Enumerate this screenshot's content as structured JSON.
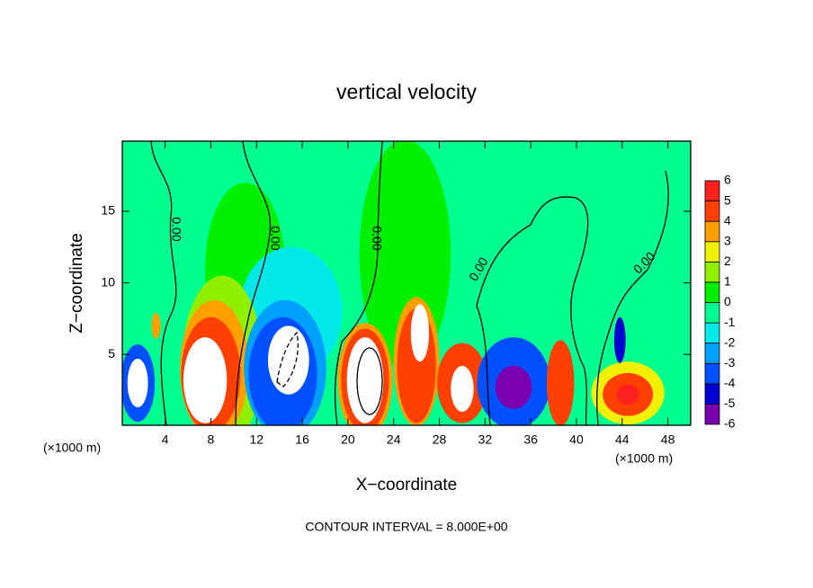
{
  "chart_data": {
    "type": "contour",
    "title": "vertical velocity",
    "x_label": "X−coordinate",
    "y_label": "Z−coordinate",
    "x_unit": "(×1000 m)",
    "x_unit_right": "(×1000 m)",
    "footer": "CONTOUR INTERVAL = 8.000E+00",
    "xlim": [
      0.25,
      50
    ],
    "ylim": [
      0.05,
      19.9
    ],
    "xticks": [
      4,
      8,
      12,
      16,
      20,
      24,
      28,
      32,
      36,
      40,
      44,
      48
    ],
    "yticks": [
      5,
      10,
      15
    ],
    "contour_labels": [
      "0.00",
      "0.00",
      "0.00",
      "0.00",
      "0.00"
    ],
    "colorbar": {
      "levels": [
        -6,
        -5,
        -4,
        -3,
        -2,
        -1,
        0,
        1,
        2,
        3,
        4,
        5,
        6
      ],
      "colors": [
        "#7a00b0",
        "#0000d0",
        "#0050ff",
        "#00a0ff",
        "#00e8e8",
        "#00ff90",
        "#00f000",
        "#90f000",
        "#f0f000",
        "#ffa000",
        "#ff4000",
        "#ff2020",
        "#ff9090"
      ]
    },
    "background_value": -0.5,
    "features": [
      {
        "x": 11,
        "z": 11,
        "rx": 3.5,
        "rz": 6,
        "value": 0.5
      },
      {
        "x": 25,
        "z": 12,
        "rx": 4,
        "rz": 8,
        "value": 0.5
      },
      {
        "x": 15,
        "z": 8,
        "rx": 4.5,
        "rz": 4.5,
        "value": -1.5
      },
      {
        "x": 9,
        "z": 4.5,
        "rx": 3.5,
        "rz": 6,
        "value": 1.5
      },
      {
        "x": 8.3,
        "z": 4,
        "rx": 3,
        "rz": 4.8,
        "value": 3
      },
      {
        "x": 8,
        "z": 3.6,
        "rx": 2.6,
        "rz": 4,
        "value": 4.5
      },
      {
        "x": 7.5,
        "z": 3.2,
        "rx": 1.9,
        "rz": 3,
        "value": 7
      },
      {
        "x": 14.5,
        "z": 4,
        "rx": 3.6,
        "rz": 4.8,
        "value": -2.5
      },
      {
        "x": 14.3,
        "z": 3.6,
        "rx": 3,
        "rz": 4,
        "value": -4
      },
      {
        "x": 14.8,
        "z": 4.6,
        "rx": 1.8,
        "rz": 2.4,
        "value": -7
      },
      {
        "x": 21.5,
        "z": 3.2,
        "rx": 2.4,
        "rz": 4,
        "value": 3
      },
      {
        "x": 21.5,
        "z": 3.2,
        "rx": 2.1,
        "rz": 3.6,
        "value": 4.5
      },
      {
        "x": 21.5,
        "z": 3.2,
        "rx": 1.6,
        "rz": 3,
        "value": 7
      },
      {
        "x": 26,
        "z": 4.5,
        "rx": 2,
        "rz": 4.5,
        "value": 3
      },
      {
        "x": 26,
        "z": 4.2,
        "rx": 1.7,
        "rz": 4,
        "value": 4.5
      },
      {
        "x": 26.3,
        "z": 6.5,
        "rx": 0.8,
        "rz": 2,
        "value": 7
      },
      {
        "x": 30,
        "z": 3,
        "rx": 2.2,
        "rz": 2.8,
        "value": 4.5
      },
      {
        "x": 30,
        "z": 2.6,
        "rx": 1,
        "rz": 1.6,
        "value": 7
      },
      {
        "x": 34.5,
        "z": 3,
        "rx": 3.2,
        "rz": 3.2,
        "value": -4
      },
      {
        "x": 34.5,
        "z": 2.7,
        "rx": 1.6,
        "rz": 1.5,
        "value": -5.5
      },
      {
        "x": 38.6,
        "z": 3,
        "rx": 1.2,
        "rz": 3,
        "value": 4.5
      },
      {
        "x": 44.5,
        "z": 2.3,
        "rx": 3.2,
        "rz": 2.2,
        "value": 2
      },
      {
        "x": 44.5,
        "z": 2.2,
        "rx": 2.2,
        "rz": 1.5,
        "value": 4.5
      },
      {
        "x": 44.5,
        "z": 2.2,
        "rx": 1,
        "rz": 0.7,
        "value": 5.5
      },
      {
        "x": 43.8,
        "z": 6,
        "rx": 0.5,
        "rz": 1.6,
        "value": -4.5
      },
      {
        "x": 1.6,
        "z": 3,
        "rx": 1.5,
        "rz": 2.7,
        "value": -4
      },
      {
        "x": 1.6,
        "z": 3,
        "rx": 0.9,
        "rz": 1.7,
        "value": -7
      },
      {
        "x": 3.2,
        "z": 7,
        "rx": 0.4,
        "rz": 0.9,
        "value": 3
      }
    ]
  }
}
